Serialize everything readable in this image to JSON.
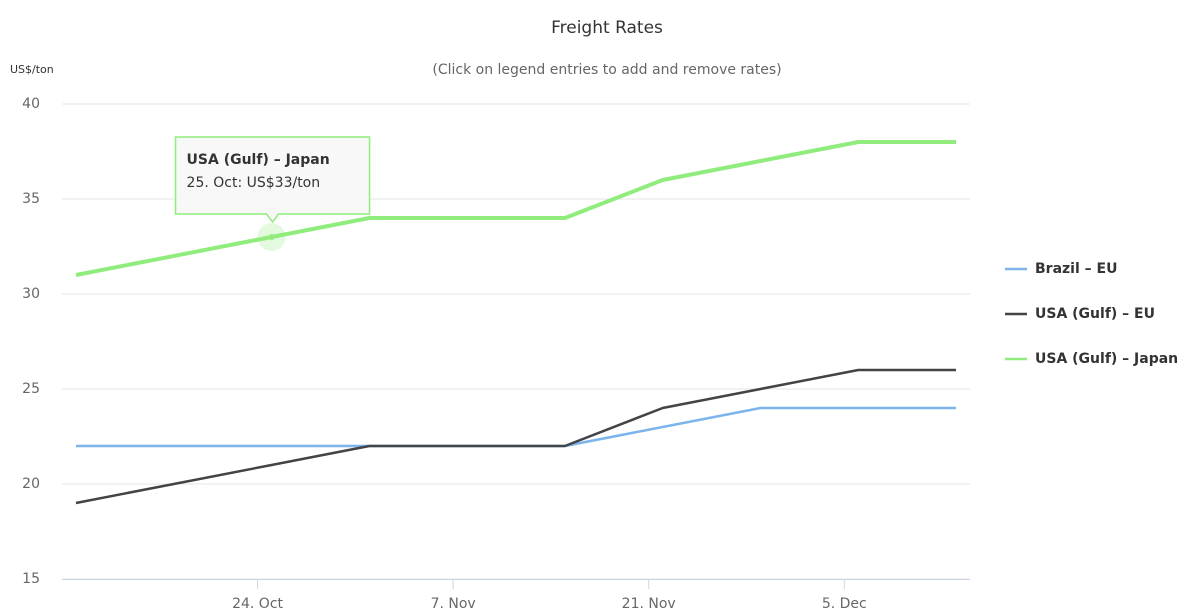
{
  "chart_data": {
    "type": "line",
    "title": "Freight Rates",
    "subtitle": "(Click on legend entries to add and remove rates)",
    "y_label": "US$/ton",
    "x": [
      "10-11",
      "10-25",
      "11-01",
      "11-15",
      "11-22",
      "11-29",
      "12-06",
      "12-13"
    ],
    "xlim": [
      "10-10",
      "12-14"
    ],
    "xticks": [
      {
        "value": "10-24",
        "label": "24. Oct"
      },
      {
        "value": "11-07",
        "label": "7. Nov"
      },
      {
        "value": "11-21",
        "label": "21. Nov"
      },
      {
        "value": "12-05",
        "label": "5. Dec"
      }
    ],
    "ylim": [
      15,
      40
    ],
    "yticks": [
      15,
      20,
      25,
      30,
      35,
      40
    ],
    "grid": true,
    "legend": "right",
    "series": [
      {
        "name": "Brazil – EU",
        "color": "#7cb5ec",
        "values": [
          22,
          22,
          22,
          22,
          23,
          24,
          24,
          24
        ]
      },
      {
        "name": "USA (Gulf) – EU",
        "color": "#434348",
        "values": [
          19,
          21,
          22,
          22,
          24,
          25,
          26,
          26
        ]
      },
      {
        "name": "USA (Gulf) – Japan",
        "color": "#90ed7d",
        "values": [
          31,
          33,
          34,
          34,
          36,
          37,
          38,
          38
        ]
      }
    ],
    "tooltip": {
      "series": 2,
      "index": 1,
      "title": "USA (Gulf) – Japan",
      "text": "25. Oct: US$33/ton"
    }
  }
}
